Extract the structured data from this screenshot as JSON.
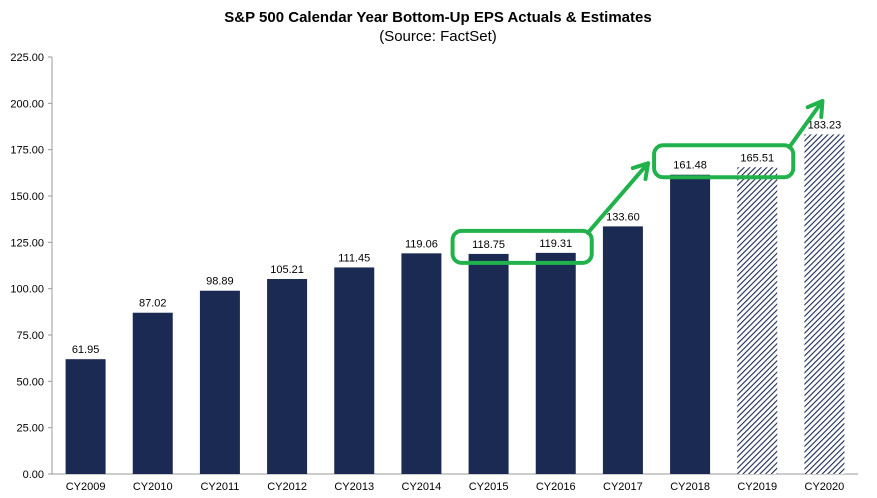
{
  "chart_data": {
    "type": "bar",
    "title": "S&P 500 Calendar Year Bottom-Up EPS Actuals & Estimates",
    "subtitle": "(Source: FactSet)",
    "xlabel": "",
    "ylabel": "",
    "ylim": [
      0,
      225
    ],
    "yticks": [
      "0.00",
      "25.00",
      "50.00",
      "75.00",
      "100.00",
      "125.00",
      "150.00",
      "175.00",
      "200.00",
      "225.00"
    ],
    "categories": [
      "CY2009",
      "CY2010",
      "CY2011",
      "CY2012",
      "CY2013",
      "CY2014",
      "CY2015",
      "CY2016",
      "CY2017",
      "CY2018",
      "CY2019",
      "CY2020"
    ],
    "values": [
      61.95,
      87.02,
      98.89,
      105.21,
      111.45,
      119.06,
      118.75,
      119.31,
      133.6,
      161.48,
      165.51,
      183.23
    ],
    "labels": [
      "61.95",
      "87.02",
      "98.89",
      "105.21",
      "111.45",
      "119.06",
      "118.75",
      "119.31",
      "133.60",
      "161.48",
      "165.51",
      "183.23"
    ],
    "estimate": [
      false,
      false,
      false,
      false,
      false,
      false,
      false,
      false,
      false,
      false,
      true,
      true
    ],
    "grid": false,
    "legend": "none",
    "colors": {
      "actual_bar": "#1a2a52",
      "estimate_hatch": "#1a2a52",
      "highlight": "#22b24c",
      "axis": "#999999"
    },
    "annotations": {
      "highlight_groups": [
        [
          "CY2015",
          "CY2016"
        ],
        [
          "CY2018",
          "CY2019"
        ]
      ],
      "arrows": [
        "CY2016 to CY2018",
        "CY2019 to CY2020"
      ]
    }
  }
}
